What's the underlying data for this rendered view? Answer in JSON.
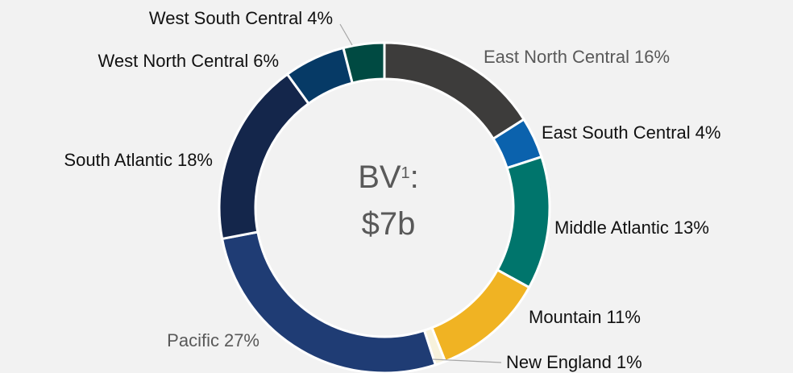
{
  "chart_data": {
    "type": "donut",
    "categories": [
      "East North Central",
      "East South Central",
      "Middle Atlantic",
      "Mountain",
      "New England",
      "Pacific",
      "South Atlantic",
      "West North Central",
      "West South Central"
    ],
    "values": [
      16,
      4,
      13,
      11,
      1,
      27,
      18,
      6,
      4
    ],
    "value_labels": [
      "16%",
      "4%",
      "13%",
      "11%",
      "1%",
      "27%",
      "18%",
      "6%",
      "4%"
    ],
    "colors": [
      "#3d3c3b",
      "#0b62ad",
      "#00756c",
      "#f0b323",
      "#f7f2dc",
      "#1f3c74",
      "#14264b",
      "#063a66",
      "#004a42"
    ],
    "label_colors": [
      "#595959",
      "#111111",
      "#111111",
      "#111111",
      "#111111",
      "#595959",
      "#111111",
      "#111111",
      "#111111"
    ],
    "center_label": {
      "main": "BV",
      "superscript": "1",
      "suffix": ":",
      "value": "$7b"
    }
  }
}
